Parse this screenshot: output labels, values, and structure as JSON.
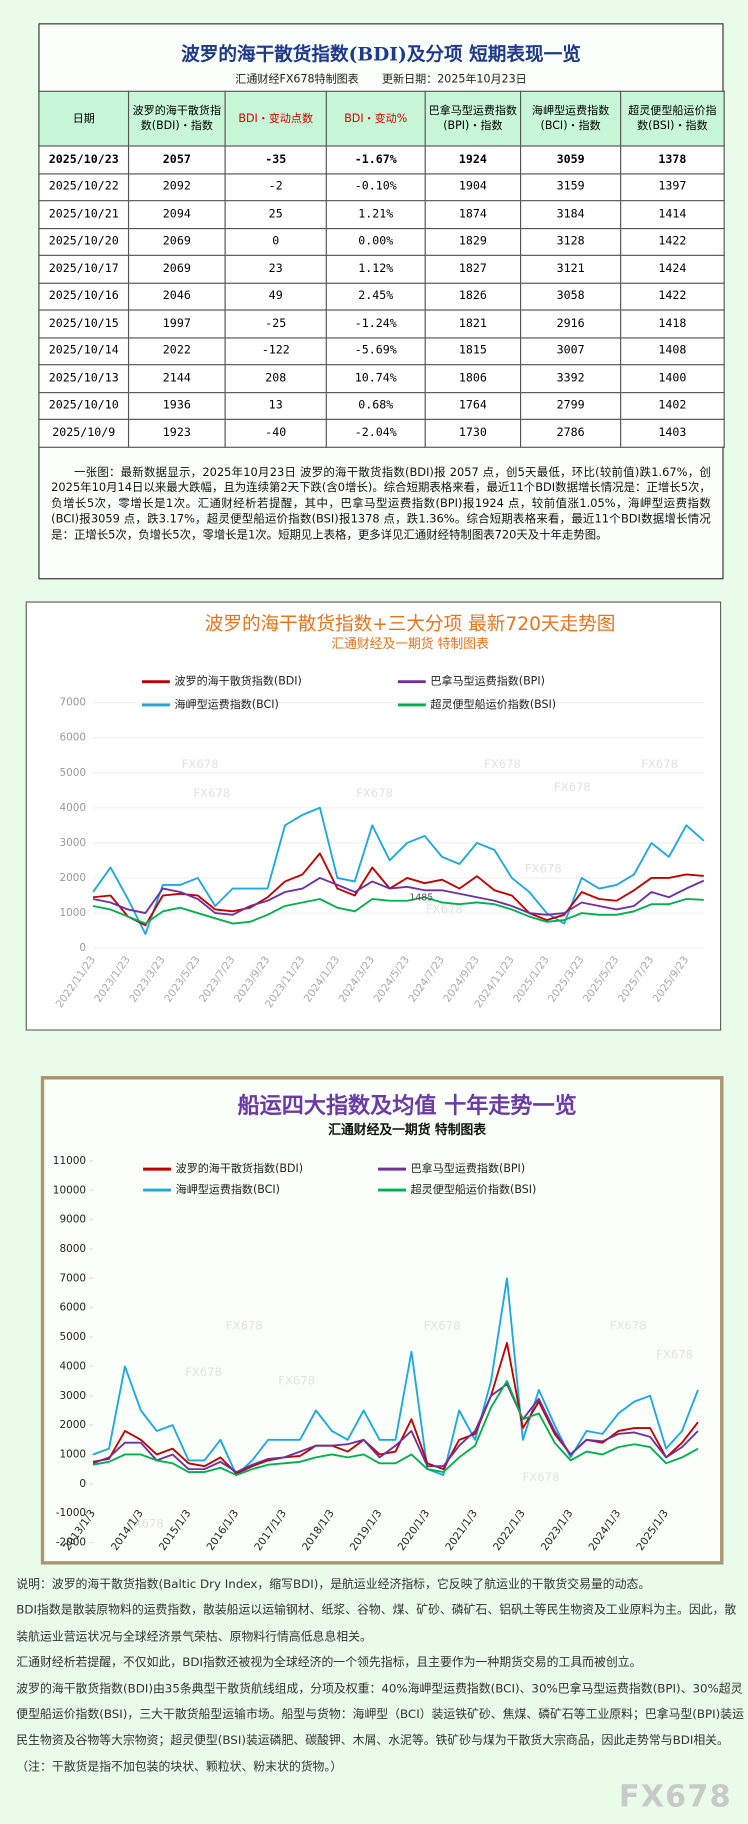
{
  "table": {
    "title": "波罗的海干散货指数(BDI)及分项  短期表现一览",
    "subtitle": "汇通财经FX678特制图表",
    "update": "更新日期：2025年10月23日",
    "headers": [
      "日期",
      "波罗的海干散货指数(BDI)・指数",
      "BDI・变动点数",
      "BDI・变动%",
      "巴拿马型运费指数(BPI)・指数",
      "海岬型运费指数(BCI)・指数",
      "超灵便型船运价指数(BSI)・指数"
    ],
    "rows": [
      [
        "2025/10/23",
        2057,
        -35,
        "-1.67%",
        1924,
        3059,
        1378
      ],
      [
        "2025/10/22",
        2092,
        -2,
        "-0.10%",
        1904,
        3159,
        1397
      ],
      [
        "2025/10/21",
        2094,
        25,
        "1.21%",
        1874,
        3184,
        1414
      ],
      [
        "2025/10/20",
        2069,
        0,
        "0.00%",
        1829,
        3128,
        1422
      ],
      [
        "2025/10/17",
        2069,
        23,
        "1.12%",
        1827,
        3121,
        1424
      ],
      [
        "2025/10/16",
        2046,
        49,
        "2.45%",
        1826,
        3058,
        1422
      ],
      [
        "2025/10/15",
        1997,
        -25,
        "-1.24%",
        1821,
        2916,
        1418
      ],
      [
        "2025/10/14",
        2022,
        -122,
        "-5.69%",
        1815,
        3007,
        1408
      ],
      [
        "2025/10/13",
        2144,
        208,
        "10.74%",
        1806,
        3392,
        1400
      ],
      [
        "2025/10/10",
        1936,
        13,
        "0.68%",
        1764,
        2799,
        1402
      ],
      [
        "2025/10/9",
        1923,
        -40,
        "-2.04%",
        1730,
        2786,
        1403
      ]
    ],
    "note": "一张图：最新数据显示，2025年10月23日 波罗的海干散货指数(BDI)报 2057 点，创5天最低，环比(较前值)跌1.67%，创2025年10月14日以来最大跌幅，且为连续第2天下跌(含0增长)。综合短期表格来看，最近11个BDI数据增长情况是：正增长5次，负增长5次，零增长是1次。汇通财经析若提醒，其中，巴拿马型运费指数(BPI)报1924 点，较前值涨1.05%，海岬型运费指数(BCI)报3059 点，跌3.17%，超灵便型船运价指数(BSI)报1378 点，跌1.36%。综合短期表格来看，最近11个BDI数据增长情况是：正增长5次，负增长5次，零增长是1次。短期见上表格，更多详见汇通财经特制图表720天及十年走势图。"
  },
  "chart_data": [
    {
      "type": "line",
      "title": "波罗的海干散货指数+三大分项  最新720天走势图",
      "subtitle": "汇通财经及一期货  特制图表",
      "title_color": "#e8731c",
      "grid": true,
      "watermark": "FX678",
      "annotation": "1485",
      "categories": [
        "2022/11/23",
        null,
        "2023/1/23",
        null,
        "2023/3/23",
        null,
        "2023/5/23",
        null,
        "2023/7/23",
        null,
        "2023/9/23",
        null,
        "2023/11/23",
        null,
        "2024/1/23",
        null,
        "2024/3/23",
        null,
        "2024/5/23",
        null,
        "2024/7/23",
        null,
        "2024/9/23",
        null,
        "2024/11/23",
        null,
        "2025/1/23",
        null,
        "2025/3/23",
        null,
        "2025/5/23",
        null,
        "2025/7/23",
        null,
        "2025/9/23",
        null
      ],
      "ylim": [
        0,
        7000
      ],
      "yticks": [
        0,
        1000,
        2000,
        3000,
        4000,
        5000,
        6000,
        7000
      ],
      "series": [
        {
          "name": "波罗的海干散货指数(BDI)",
          "color": "#c00000",
          "values": [
            1450,
            1500,
            900,
            650,
            1500,
            1550,
            1500,
            1100,
            1050,
            1150,
            1450,
            1900,
            2100,
            2700,
            1700,
            1500,
            2300,
            1700,
            2000,
            1850,
            1950,
            1700,
            2050,
            1650,
            1500,
            1000,
            800,
            950,
            1600,
            1400,
            1350,
            1650,
            2000,
            2000,
            2100,
            2057
          ]
        },
        {
          "name": "巴拿马型运费指数(BPI)",
          "color": "#7030a0",
          "values": [
            1400,
            1300,
            1100,
            1000,
            1700,
            1600,
            1400,
            1000,
            950,
            1200,
            1350,
            1600,
            1700,
            2000,
            1800,
            1600,
            1900,
            1700,
            1750,
            1650,
            1650,
            1550,
            1450,
            1350,
            1200,
            1000,
            950,
            1000,
            1300,
            1200,
            1100,
            1200,
            1600,
            1450,
            1700,
            1924
          ]
        },
        {
          "name": "海岬型运费指数(BCI)",
          "color": "#1ea7e1",
          "values": [
            1600,
            2300,
            1400,
            400,
            1800,
            1800,
            2000,
            1200,
            1700,
            1700,
            1700,
            3500,
            3800,
            4000,
            2000,
            1900,
            3500,
            2500,
            3000,
            3200,
            2600,
            2400,
            3000,
            2800,
            2000,
            1600,
            1000,
            700,
            2000,
            1700,
            1800,
            2100,
            3000,
            2600,
            3500,
            3059
          ]
        },
        {
          "name": "超灵便型船运价指数(BSI)",
          "color": "#00b050",
          "values": [
            1200,
            1100,
            900,
            700,
            1050,
            1150,
            1000,
            850,
            700,
            750,
            950,
            1200,
            1300,
            1400,
            1150,
            1050,
            1400,
            1350,
            1350,
            1450,
            1300,
            1250,
            1300,
            1250,
            1100,
            900,
            750,
            800,
            1000,
            950,
            950,
            1050,
            1250,
            1250,
            1400,
            1378
          ]
        }
      ]
    },
    {
      "type": "line",
      "title": "船运四大指数及均值 十年走势一览",
      "subtitle": "汇通财经及一期货 特制图表",
      "title_color": "#6a3aa8",
      "grid": false,
      "watermark": "FX678",
      "categories": [
        "2013/1/3",
        null,
        null,
        "2014/1/3",
        null,
        null,
        "2015/1/3",
        null,
        null,
        "2016/1/3",
        null,
        null,
        "2017/1/3",
        null,
        null,
        "2018/1/3",
        null,
        null,
        "2019/1/3",
        null,
        null,
        "2020/1/3",
        null,
        null,
        "2021/1/3",
        null,
        null,
        "2022/1/3",
        null,
        null,
        "2023/1/3",
        null,
        null,
        "2024/1/3",
        null,
        null,
        "2025/1/3",
        null,
        null
      ],
      "ylim": [
        -2000,
        11000
      ],
      "yticks": [
        -2000,
        -1000,
        0,
        1000,
        2000,
        3000,
        4000,
        5000,
        6000,
        7000,
        8000,
        9000,
        10000,
        11000
      ],
      "series": [
        {
          "name": "波罗的海干散货指数(BDI)",
          "color": "#c00000",
          "values": [
            750,
            850,
            1800,
            1500,
            1000,
            1200,
            700,
            600,
            900,
            350,
            600,
            800,
            900,
            950,
            1300,
            1300,
            1100,
            1500,
            1000,
            1100,
            2200,
            700,
            500,
            1500,
            1700,
            3000,
            4800,
            1900,
            2800,
            1700,
            1000,
            1500,
            1400,
            1800,
            1900,
            1900,
            900,
            1400,
            2100
          ]
        },
        {
          "name": "巴拿马型运费指数(BPI)",
          "color": "#7030a0",
          "values": [
            700,
            900,
            1400,
            1400,
            800,
            1000,
            500,
            500,
            750,
            400,
            650,
            850,
            900,
            1100,
            1300,
            1300,
            1350,
            1500,
            900,
            1300,
            1800,
            600,
            600,
            1300,
            1800,
            3000,
            3400,
            2200,
            2900,
            1800,
            1000,
            1500,
            1450,
            1700,
            1750,
            1600,
            900,
            1250,
            1800
          ]
        },
        {
          "name": "海岬型运费指数(BCI)",
          "color": "#1ea7e1",
          "values": [
            1000,
            1200,
            4000,
            2500,
            1800,
            2000,
            800,
            800,
            1500,
            300,
            800,
            1500,
            1500,
            1500,
            2500,
            1800,
            1500,
            2500,
            1500,
            1500,
            4500,
            500,
            300,
            2500,
            1500,
            3500,
            7000,
            1500,
            3200,
            2000,
            900,
            1800,
            1700,
            2400,
            2800,
            3000,
            1200,
            1800,
            3200
          ]
        },
        {
          "name": "超灵便型船运价指数(BSI)",
          "color": "#00b050",
          "values": [
            650,
            750,
            1000,
            1000,
            800,
            700,
            400,
            400,
            550,
            300,
            500,
            650,
            700,
            750,
            900,
            1000,
            900,
            1000,
            700,
            700,
            1000,
            500,
            400,
            900,
            1300,
            2600,
            3500,
            2200,
            2400,
            1400,
            800,
            1100,
            1000,
            1250,
            1350,
            1250,
            700,
            900,
            1200
          ]
        }
      ]
    }
  ],
  "notes": [
    "说明：波罗的海干散货指数(Baltic Dry Index，缩写BDI)，是航运业经济指标，它反映了航运业的干散货交易量的动态。",
    "BDI指数是散装原物料的运费指数，散装船运以运输钢材、纸浆、谷物、煤、矿砂、磷矿石、铝矾土等民生物资及工业原料为主。因此，散装航运业营运状况与全球经济景气荣枯、原物料行情高低息息相关。",
    "汇通财经析若提醒，不仅如此，BDI指数还被视为全球经济的一个领先指标，且主要作为一种期货交易的工具而被创立。",
    "波罗的海干散货指数(BDI)由35条典型干散货航线组成，分项及权重：40%海岬型运费指数(BCI)、30%巴拿马型运费指数(BPI)、30%超灵便型船运价指数(BSI)，三大干散货船型运输市场。船型与货物：海岬型（BCI）装运铁矿砂、焦煤、磷矿石等工业原料；巴拿马型(BPI)装运民生物资及谷物等大宗物资；超灵便型(BSI)装运磷肥、碳酸钾、木屑、水泥等。铁矿砂与煤为干散货大宗商品，因此走势常与BDI相关。（注：干散货是指不加包装的块状、颗粒状、粉末状的货物。）"
  ],
  "footer_mark": "FX678"
}
